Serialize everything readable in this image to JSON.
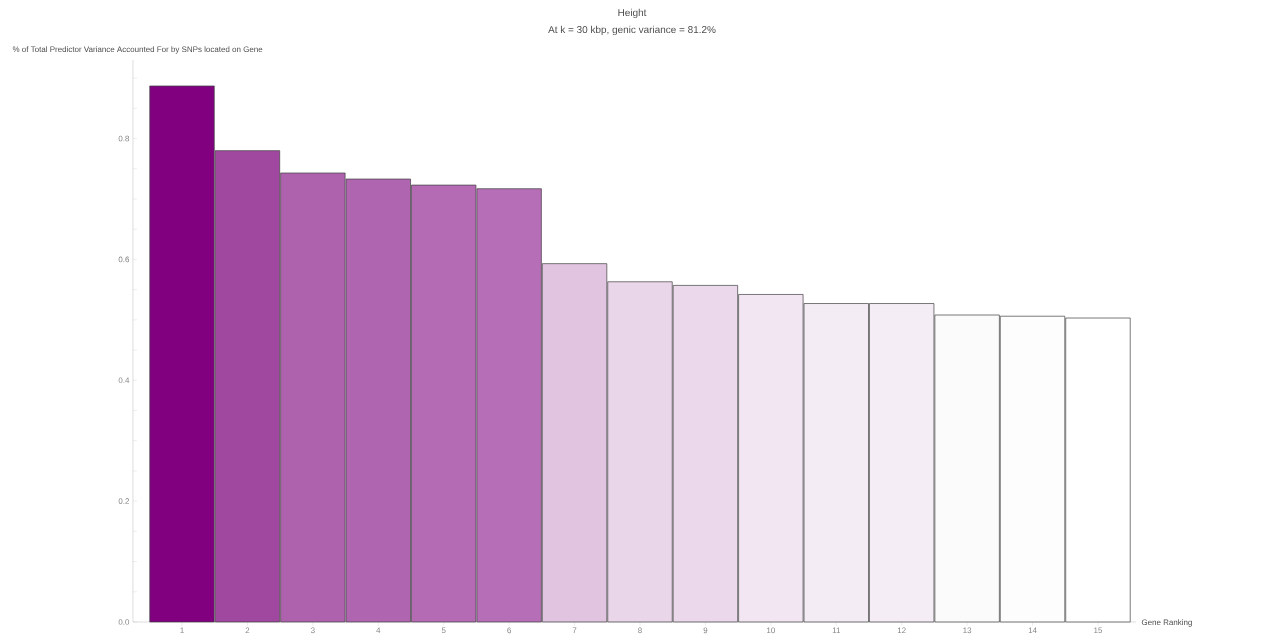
{
  "chart_data": {
    "type": "bar",
    "title": "Height",
    "subtitle": "At k = 30 kbp, genic variance = 81.2%",
    "ylabel": "% of Total Predictor Variance Accounted For by SNPs located on Gene",
    "xlabel": "Gene Ranking",
    "categories": [
      "1",
      "2",
      "3",
      "4",
      "5",
      "6",
      "7",
      "8",
      "9",
      "10",
      "11",
      "12",
      "13",
      "14",
      "15"
    ],
    "values": [
      0.887,
      0.78,
      0.743,
      0.733,
      0.723,
      0.717,
      0.593,
      0.563,
      0.557,
      0.542,
      0.527,
      0.527,
      0.508,
      0.506,
      0.503
    ],
    "colors": [
      "#800080",
      "#a0479f",
      "#ae62ae",
      "#b065b0",
      "#b46bb4",
      "#b66fb6",
      "#e0c4e0",
      "#e9d6e9",
      "#ebd8eb",
      "#f2e6f2",
      "#f4ecf4",
      "#f5edf5",
      "#fbfbfb",
      "#fdfdfd",
      "#ffffff"
    ],
    "ylim": [
      0,
      0.93
    ],
    "yticks": [
      {
        "value": 0,
        "label": "0.0"
      },
      {
        "value": 0.05,
        "label": null
      },
      {
        "value": 0.1,
        "label": null
      },
      {
        "value": 0.15,
        "label": null
      },
      0.2,
      {
        "value": 0.25,
        "label": null
      },
      {
        "value": 0.3,
        "label": null
      },
      {
        "value": 0.35,
        "label": null
      },
      0.4,
      {
        "value": 0.45,
        "label": null
      },
      {
        "value": 0.5,
        "label": null
      },
      {
        "value": 0.55,
        "label": null
      },
      0.6,
      {
        "value": 0.65,
        "label": null
      },
      {
        "value": 0.7,
        "label": null
      },
      {
        "value": 0.75,
        "label": null
      },
      0.8,
      {
        "value": 0.85,
        "label": null
      },
      {
        "value": 0.9,
        "label": null
      }
    ],
    "grid": false
  }
}
